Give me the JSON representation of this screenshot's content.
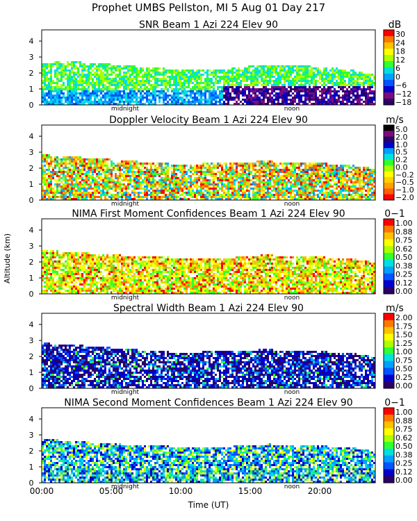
{
  "header": {
    "title": "Prophet  UMBS Pellston, MI    5 Aug 01 Day 217"
  },
  "shared": {
    "ylabel": "Altitude (km)",
    "xlabel": "Time (UT)",
    "yticks": [
      "0",
      "1",
      "2",
      "3",
      "4"
    ],
    "xticks": [
      "00:00",
      "05:00",
      "10:00",
      "15:00",
      "20:00"
    ],
    "markers": {
      "midnight": "midnight",
      "noon": "noon"
    }
  },
  "colors": {
    "snr": [
      "#2A0066",
      "#7D0A7D",
      "#0000CC",
      "#0055FF",
      "#00A0FF",
      "#00E0E0",
      "#30FF30",
      "#AAFF00",
      "#FFFF00",
      "#FFC000",
      "#FF7700",
      "#FF0000"
    ],
    "vel": [
      "#FF0000",
      "#FF6000",
      "#FFA000",
      "#FFD000",
      "#FFFF00",
      "#A0FF00",
      "#30FF30",
      "#00E0E0",
      "#00A0FF",
      "#0000CC",
      "#2A0066",
      "#7D0A7D",
      "#000000"
    ],
    "conf": [
      "#2A0066",
      "#0000CC",
      "#0055FF",
      "#00A0FF",
      "#00E0E0",
      "#30FF30",
      "#AAFF00",
      "#FFFF00",
      "#FFC000",
      "#FF7700",
      "#FF0000"
    ]
  },
  "chart_data": [
    {
      "type": "heatmap",
      "title": "SNR Beam 1 Azi 224 Elev 90",
      "units": "dB",
      "xlabel": "Time (UT)",
      "ylabel": "Altitude (km)",
      "xlim": [
        0,
        24
      ],
      "ylim": [
        0,
        4.7
      ],
      "colorbar": {
        "ticks": [
          "30",
          "24",
          "18",
          "12",
          "6",
          "0",
          "−6",
          "−12",
          "−18"
        ]
      },
      "palette": "snr",
      "fill": {
        "base": [
          0.2,
          0.2,
          0.65,
          0.3
        ],
        "pattern": "snr"
      },
      "bands": [
        {
          "t": 0,
          "top": 2.7
        },
        {
          "t": 2,
          "top": 2.8
        },
        {
          "t": 5,
          "top": 2.6
        },
        {
          "t": 8,
          "top": 2.4
        },
        {
          "t": 10,
          "top": 2.3
        },
        {
          "t": 13,
          "top": 2.3
        },
        {
          "t": 16,
          "top": 2.6
        },
        {
          "t": 19,
          "top": 2.5
        },
        {
          "t": 22,
          "top": 2.3
        },
        {
          "t": 24,
          "top": 1.9
        }
      ]
    },
    {
      "type": "heatmap",
      "title": "Doppler Velocity Beam 1 Azi 224 Elev 90",
      "units": "m/s",
      "xlabel": "Time (UT)",
      "ylabel": "Altitude (km)",
      "xlim": [
        0,
        24
      ],
      "ylim": [
        0,
        4.7
      ],
      "colorbar": {
        "ticks": [
          "5.0",
          "2.0",
          "1.0",
          "0.5",
          "0.2",
          "0.0",
          "−0.2",
          "−0.5",
          "−1.0",
          "−2.0"
        ]
      },
      "palette": "vel",
      "fill": {
        "base": [
          0.15,
          0.35,
          0.35,
          0.25
        ],
        "pattern": "vel"
      },
      "bands": [
        {
          "t": 0,
          "top": 2.9
        },
        {
          "t": 2,
          "top": 2.8
        },
        {
          "t": 5,
          "top": 2.6
        },
        {
          "t": 8,
          "top": 2.4
        },
        {
          "t": 10,
          "top": 2.3
        },
        {
          "t": 13,
          "top": 2.4
        },
        {
          "t": 16,
          "top": 2.5
        },
        {
          "t": 19,
          "top": 2.4
        },
        {
          "t": 22,
          "top": 2.3
        },
        {
          "t": 24,
          "top": 2.0
        }
      ]
    },
    {
      "type": "heatmap",
      "title": "NIMA First Moment Confidences Beam 1 Azi 224 Elev 90",
      "units": "0−1",
      "xlabel": "Time (UT)",
      "ylabel": "Altitude (km)",
      "xlim": [
        0,
        24
      ],
      "ylim": [
        0,
        4.7
      ],
      "colorbar": {
        "ticks": [
          "1.00",
          "0.88",
          "0.75",
          "0.62",
          "0.50",
          "0.38",
          "0.25",
          "0.12",
          "0.00"
        ]
      },
      "palette": "conf",
      "fill": {
        "base": [
          0.2,
          0.35,
          0.35,
          0.25
        ],
        "pattern": "conf1"
      },
      "bands": [
        {
          "t": 0,
          "top": 2.8
        },
        {
          "t": 2,
          "top": 2.7
        },
        {
          "t": 5,
          "top": 2.5
        },
        {
          "t": 8,
          "top": 2.4
        },
        {
          "t": 10,
          "top": 2.3
        },
        {
          "t": 13,
          "top": 2.3
        },
        {
          "t": 16,
          "top": 2.5
        },
        {
          "t": 19,
          "top": 2.4
        },
        {
          "t": 22,
          "top": 2.3
        },
        {
          "t": 24,
          "top": 2.0
        }
      ]
    },
    {
      "type": "heatmap",
      "title": "Spectral Width Beam 1 Azi 224 Elev 90",
      "units": "m/s",
      "xlabel": "Time (UT)",
      "ylabel": "Altitude (km)",
      "xlim": [
        0,
        24
      ],
      "ylim": [
        0,
        4.7
      ],
      "colorbar": {
        "ticks": [
          "2.00",
          "1.75",
          "1.50",
          "1.25",
          "1.00",
          "0.75",
          "0.50",
          "0.25",
          "0.00"
        ]
      },
      "palette": "conf",
      "fill": {
        "base": [
          0.15,
          0.35,
          0.4,
          0.2
        ],
        "pattern": "width"
      },
      "bands": [
        {
          "t": 0,
          "top": 2.9
        },
        {
          "t": 2,
          "top": 2.8
        },
        {
          "t": 5,
          "top": 2.6
        },
        {
          "t": 8,
          "top": 2.4
        },
        {
          "t": 10,
          "top": 2.3
        },
        {
          "t": 13,
          "top": 2.4
        },
        {
          "t": 16,
          "top": 2.5
        },
        {
          "t": 19,
          "top": 2.4
        },
        {
          "t": 22,
          "top": 2.3
        },
        {
          "t": 24,
          "top": 2.0
        }
      ]
    },
    {
      "type": "heatmap",
      "title": "NIMA Second Moment Confidences Beam 1 Azi 224 Elev 90",
      "units": "0−1",
      "xlabel": "Time (UT)",
      "ylabel": "Altitude (km)",
      "xlim": [
        0,
        24
      ],
      "ylim": [
        0,
        4.7
      ],
      "colorbar": {
        "ticks": [
          "1.00",
          "0.88",
          "0.75",
          "0.62",
          "0.50",
          "0.38",
          "0.25",
          "0.12",
          "0.00"
        ]
      },
      "palette": "conf",
      "fill": {
        "base": [
          0.2,
          0.35,
          0.35,
          0.25
        ],
        "pattern": "conf2"
      },
      "bands": [
        {
          "t": 0,
          "top": 2.8
        },
        {
          "t": 2,
          "top": 2.7
        },
        {
          "t": 5,
          "top": 2.5
        },
        {
          "t": 8,
          "top": 2.4
        },
        {
          "t": 10,
          "top": 2.3
        },
        {
          "t": 13,
          "top": 2.3
        },
        {
          "t": 16,
          "top": 2.5
        },
        {
          "t": 19,
          "top": 2.4
        },
        {
          "t": 22,
          "top": 2.3
        },
        {
          "t": 24,
          "top": 2.0
        }
      ]
    }
  ]
}
